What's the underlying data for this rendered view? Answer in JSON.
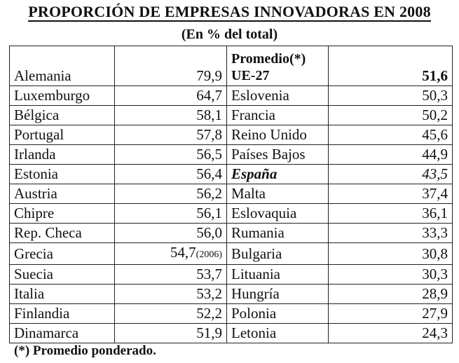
{
  "title": "PROPORCIÓN DE EMPRESAS INNOVADORAS EN 2008",
  "subtitle": "(En % del total)",
  "header": {
    "left_country": "Alemania",
    "left_value": "79,9",
    "right_label_line1": "Promedio(*)",
    "right_label_line2": "UE-27",
    "right_value": "51,6"
  },
  "rows": [
    {
      "c1": "Luxemburgo",
      "v1": "64,7",
      "v1_note": "",
      "c2": "Eslovenia",
      "v2": "50,3"
    },
    {
      "c1": "Bélgica",
      "v1": "58,1",
      "v1_note": "",
      "c2": "Francia",
      "v2": "50,2"
    },
    {
      "c1": "Portugal",
      "v1": "57,8",
      "v1_note": "",
      "c2": "Reino Unido",
      "v2": "45,6"
    },
    {
      "c1": "Irlanda",
      "v1": "56,5",
      "v1_note": "",
      "c2": "Países Bajos",
      "v2": "44,9"
    },
    {
      "c1": "Estonia",
      "v1": "56,4",
      "v1_note": "",
      "c2": "España",
      "v2": "43,5"
    },
    {
      "c1": "Austria",
      "v1": "56,2",
      "v1_note": "",
      "c2": "Malta",
      "v2": "37,4"
    },
    {
      "c1": "Chipre",
      "v1": "56,1",
      "v1_note": "",
      "c2": "Eslovaquia",
      "v2": "36,1"
    },
    {
      "c1": "Rep. Checa",
      "v1": "56,0",
      "v1_note": "",
      "c2": "Rumania",
      "v2": "33,3"
    },
    {
      "c1": "Grecia",
      "v1": "54,7",
      "v1_note": "(2006)",
      "c2": "Bulgaria",
      "v2": "30,8"
    },
    {
      "c1": "Suecia",
      "v1": "53,7",
      "v1_note": "",
      "c2": "Lituania",
      "v2": "30,3"
    },
    {
      "c1": "Italia",
      "v1": "53,2",
      "v1_note": "",
      "c2": "Hungría",
      "v2": "28,9"
    },
    {
      "c1": "Finlandia",
      "v1": "52,2",
      "v1_note": "",
      "c2": "Polonia",
      "v2": "27,9"
    },
    {
      "c1": "Dinamarca",
      "v1": "51,9",
      "v1_note": "",
      "c2": "Letonia",
      "v2": "24,3"
    }
  ],
  "footnote": "(*) Promedio ponderado."
}
